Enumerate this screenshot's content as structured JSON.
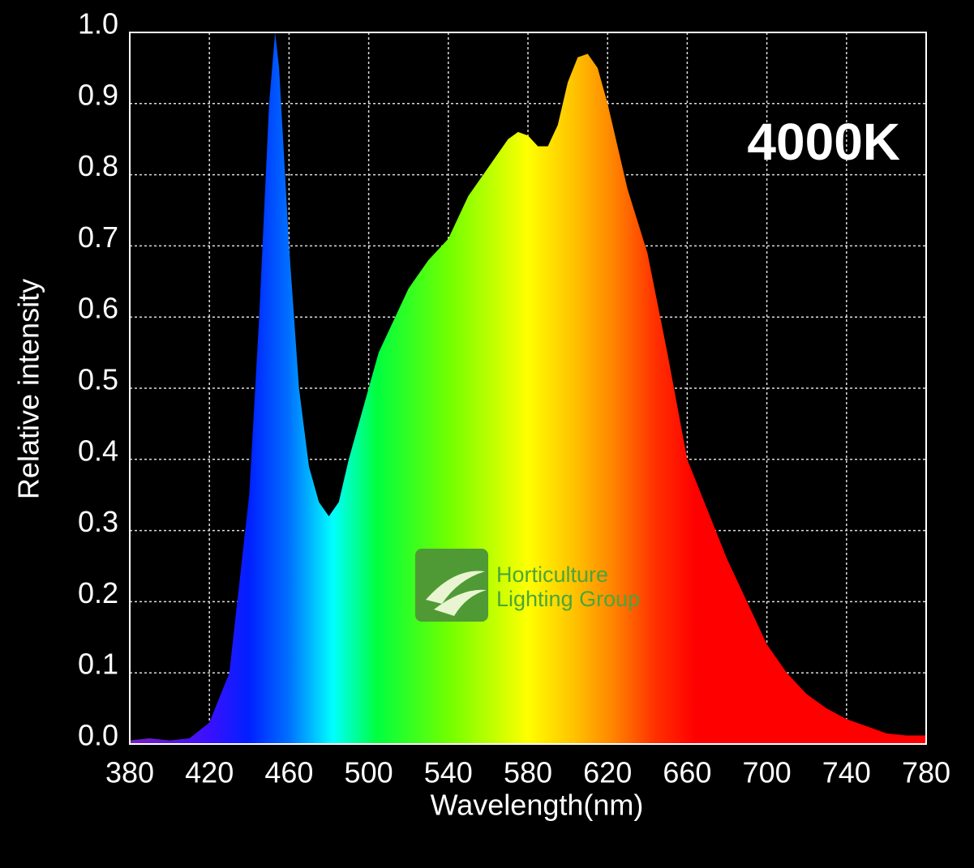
{
  "chart_data": {
    "type": "area",
    "annotation": "4000K",
    "logo": [
      "Horticulture",
      "Lighting Group"
    ],
    "xlabel": "Wavelength(nm)",
    "ylabel": "Relative intensity",
    "x": [
      380,
      390,
      400,
      410,
      420,
      430,
      440,
      445,
      450,
      453,
      455,
      460,
      465,
      470,
      475,
      480,
      485,
      490,
      495,
      500,
      505,
      510,
      520,
      530,
      540,
      550,
      560,
      570,
      575,
      580,
      585,
      590,
      595,
      600,
      605,
      610,
      615,
      620,
      625,
      630,
      640,
      650,
      660,
      670,
      680,
      690,
      700,
      710,
      720,
      730,
      740,
      750,
      760,
      770,
      780
    ],
    "series": [
      {
        "values": [
          0.005,
          0.008,
          0.005,
          0.008,
          0.03,
          0.1,
          0.35,
          0.6,
          0.9,
          1.0,
          0.95,
          0.7,
          0.5,
          0.39,
          0.34,
          0.32,
          0.34,
          0.4,
          0.45,
          0.5,
          0.55,
          0.58,
          0.64,
          0.68,
          0.71,
          0.77,
          0.81,
          0.85,
          0.86,
          0.855,
          0.84,
          0.84,
          0.87,
          0.93,
          0.965,
          0.97,
          0.95,
          0.9,
          0.84,
          0.78,
          0.69,
          0.55,
          0.4,
          0.33,
          0.26,
          0.2,
          0.14,
          0.1,
          0.07,
          0.05,
          0.035,
          0.025,
          0.015,
          0.012,
          0.012
        ]
      }
    ],
    "xlim": [
      380,
      780
    ],
    "ylim": [
      0,
      1
    ],
    "xticks": [
      380,
      420,
      460,
      500,
      540,
      580,
      620,
      660,
      700,
      740,
      780
    ],
    "yticks": [
      {
        "value": 0,
        "label": "0.0"
      },
      0.1,
      0.2,
      0.3,
      0.4,
      0.5,
      0.6,
      0.7,
      0.8,
      0.9,
      {
        "value": 1,
        "label": "1.0"
      }
    ],
    "grid": true
  }
}
